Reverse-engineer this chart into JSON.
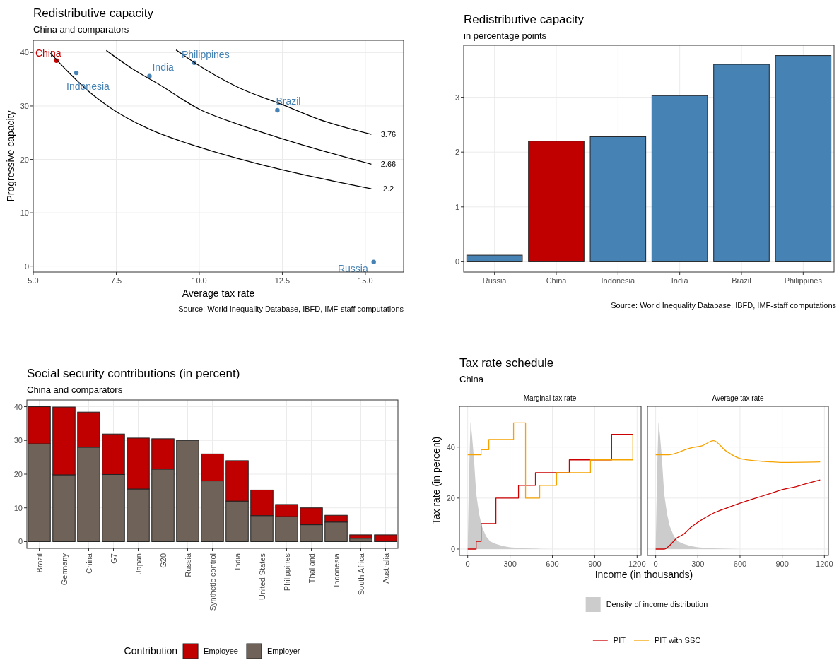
{
  "chart_data": [
    {
      "type": "scatter",
      "title": "Redistributive capacity",
      "subtitle": "China and comparators",
      "xlabel": "Average tax rate",
      "ylabel": "Progressive capacity",
      "xlim": [
        5.0,
        16.15
      ],
      "ylim": [
        -1.1,
        42.3
      ],
      "xticks": [
        {
          "value": 5,
          "label": "5.0"
        },
        {
          "value": 7.5,
          "label": "7.5"
        },
        {
          "value": 10,
          "label": "10.0"
        },
        {
          "value": 12.5,
          "label": "12.5"
        },
        {
          "value": 15,
          "label": "15.0"
        }
      ],
      "yticks": [
        0,
        10,
        20,
        30,
        40
      ],
      "grid": true,
      "marker": "circle",
      "annotations": [
        "Source: World Inequality Database, IBFD, IMF-staff computations"
      ],
      "series": [
        {
          "name": "China",
          "color": "#cc0000",
          "x": [
            5.7
          ],
          "values": [
            38.5
          ]
        },
        {
          "name": "Indonesia",
          "color": "#4682b4",
          "x": [
            6.3
          ],
          "values": [
            36.2
          ]
        },
        {
          "name": "India",
          "color": "#4682b4",
          "x": [
            8.5
          ],
          "values": [
            35.6
          ]
        },
        {
          "name": "Philippines",
          "color": "#4682b4",
          "x": [
            9.85
          ],
          "values": [
            38.1
          ]
        },
        {
          "name": "Brazil",
          "color": "#4682b4",
          "x": [
            12.35
          ],
          "values": [
            29.2
          ]
        },
        {
          "name": "Russia",
          "color": "#4682b4",
          "x": [
            15.25
          ],
          "values": [
            0.8
          ]
        },
        {
          "type": "line",
          "marker": "none",
          "name": "3.76",
          "color": "#000000",
          "x": [
            9.3,
            9.86,
            11.2,
            12.48,
            13.6,
            15.18
          ],
          "values": [
            40.5,
            38.1,
            33.4,
            30.3,
            27.5,
            24.7
          ]
        },
        {
          "type": "line",
          "marker": "none",
          "name": "2.66",
          "color": "#000000",
          "x": [
            7.2,
            8.0,
            8.8,
            10.0,
            11.2,
            12.48,
            13.6,
            15.18
          ],
          "values": [
            40.4,
            36.9,
            34.0,
            29.4,
            26.5,
            23.9,
            21.8,
            19.1
          ]
        },
        {
          "type": "line",
          "marker": "none",
          "name": "2.2",
          "color": "#000000",
          "x": [
            5.52,
            6.0,
            6.64,
            7.36,
            8.48,
            10.0,
            12.0,
            13.6,
            15.18
          ],
          "values": [
            39.9,
            36.7,
            32.9,
            29.5,
            25.7,
            22.3,
            18.8,
            16.5,
            14.5
          ]
        }
      ]
    },
    {
      "type": "bar",
      "title": "Redistributive capacity",
      "subtitle": "in percentage points",
      "categories": [
        "Russia",
        "China",
        "Indonesia",
        "India",
        "Brazil",
        "Philippines"
      ],
      "values": [
        0.12,
        2.2,
        2.28,
        3.03,
        3.6,
        3.76
      ],
      "colors": [
        "#4682b4",
        "#c00000",
        "#4682b4",
        "#4682b4",
        "#4682b4",
        "#4682b4"
      ],
      "ylim": [
        -0.188,
        3.948
      ],
      "yticks": [
        0,
        1,
        2,
        3
      ],
      "grid": true,
      "annotations": [
        "Source: World Inequality Database, IBFD, IMF-staff computations"
      ]
    },
    {
      "type": "bar",
      "stacked": true,
      "title": "Social security contributions (in percent)",
      "subtitle": "China and comparators",
      "legend_title": "Contribution",
      "legend": "bottom",
      "categories": [
        "Brazil",
        "Germany",
        "China",
        "G7",
        "Japan",
        "G20",
        "Russia",
        "Synthetic control",
        "India",
        "United States",
        "Philippines",
        "Thailand",
        "Indonesia",
        "South Africa",
        "Australia"
      ],
      "ylim": [
        -2,
        42
      ],
      "yticks": [
        0,
        10,
        20,
        30,
        40
      ],
      "grid": true,
      "series": [
        {
          "name": "Employer",
          "color": "#6e6259",
          "values": [
            29,
            19.8,
            28,
            19.9,
            15.6,
            21.5,
            30,
            18,
            12,
            7.7,
            7.4,
            5,
            5.8,
            1,
            0
          ]
        },
        {
          "name": "Employee",
          "color": "#c00000",
          "values": [
            11,
            20.1,
            10.4,
            12,
            15.1,
            9,
            0,
            8,
            12,
            7.6,
            3.6,
            5,
            2,
            1,
            2
          ]
        }
      ]
    },
    {
      "type": "step",
      "title": "Tax rate schedule",
      "subtitle": "China",
      "xlabel": "Income (in thousands)",
      "ylabel": "Tax rate (in percent)",
      "annotations": [
        "Marginal tax rate"
      ],
      "xlim": [
        -58.5,
        1228.5
      ],
      "ylim": [
        -2.5,
        56
      ],
      "xticks": [
        0,
        300,
        600,
        900,
        1200
      ],
      "yticks": [
        0,
        20,
        40
      ],
      "grid": true,
      "legend": "bottom",
      "series": [
        {
          "type": "area",
          "name": "Density of income distribution",
          "color": "#cccccc",
          "x": [
            0,
            10,
            20,
            30,
            45,
            60,
            80,
            100,
            130,
            160,
            200,
            250,
            300,
            400,
            500,
            600
          ],
          "values": [
            0,
            30,
            50,
            45,
            35,
            22,
            14,
            9,
            5,
            3,
            2,
            1.2,
            0.7,
            0.3,
            0.1,
            0
          ]
        },
        {
          "name": "PIT",
          "color": "#cc0000",
          "x": [
            0,
            60,
            95,
            200,
            360,
            480,
            720,
            1020,
            1170
          ],
          "values": [
            0,
            3,
            10,
            20,
            25,
            30,
            35,
            45,
            45
          ]
        },
        {
          "name": "PIT with SSC",
          "color": "#f5a300",
          "x": [
            0,
            95,
            150,
            325,
            410,
            510,
            630,
            870,
            1170
          ],
          "values": [
            37,
            39,
            43,
            49.5,
            20,
            25,
            30,
            35,
            45
          ]
        }
      ]
    },
    {
      "type": "line",
      "title": "Average tax rate",
      "tick_labels": "x",
      "xlim": [
        -58.5,
        1228.5
      ],
      "ylim": [
        -2.5,
        56
      ],
      "xticks": [
        0,
        300,
        600,
        900,
        1200
      ],
      "yticks": [
        0,
        20,
        40
      ],
      "grid": true,
      "series": [
        {
          "type": "area",
          "color": "#cccccc",
          "x": [
            0,
            10,
            20,
            30,
            45,
            60,
            80,
            100,
            130,
            160,
            200,
            250,
            300,
            400,
            500,
            600
          ],
          "values": [
            0,
            30,
            50,
            45,
            35,
            22,
            14,
            9,
            5,
            3,
            2,
            1.2,
            0.7,
            0.3,
            0.1,
            0
          ]
        },
        {
          "color": "#cc0000",
          "x": [
            0,
            60,
            95,
            150,
            200,
            250,
            300,
            400,
            500,
            600,
            700,
            800,
            900,
            1000,
            1050,
            1170
          ],
          "values": [
            0,
            0,
            1.2,
            4.3,
            5.9,
            8.5,
            10.5,
            13.8,
            16,
            18,
            19.8,
            21.5,
            23.3,
            24.5,
            25.3,
            27.1
          ]
        },
        {
          "color": "#f5a300",
          "x": [
            0,
            95,
            150,
            200,
            250,
            330,
            410,
            500,
            600,
            700,
            800,
            900,
            1170
          ],
          "values": [
            37,
            37,
            37.7,
            38.8,
            39.7,
            40.5,
            42.5,
            38.5,
            35.5,
            34.7,
            34.3,
            34,
            34.2
          ]
        }
      ]
    }
  ]
}
